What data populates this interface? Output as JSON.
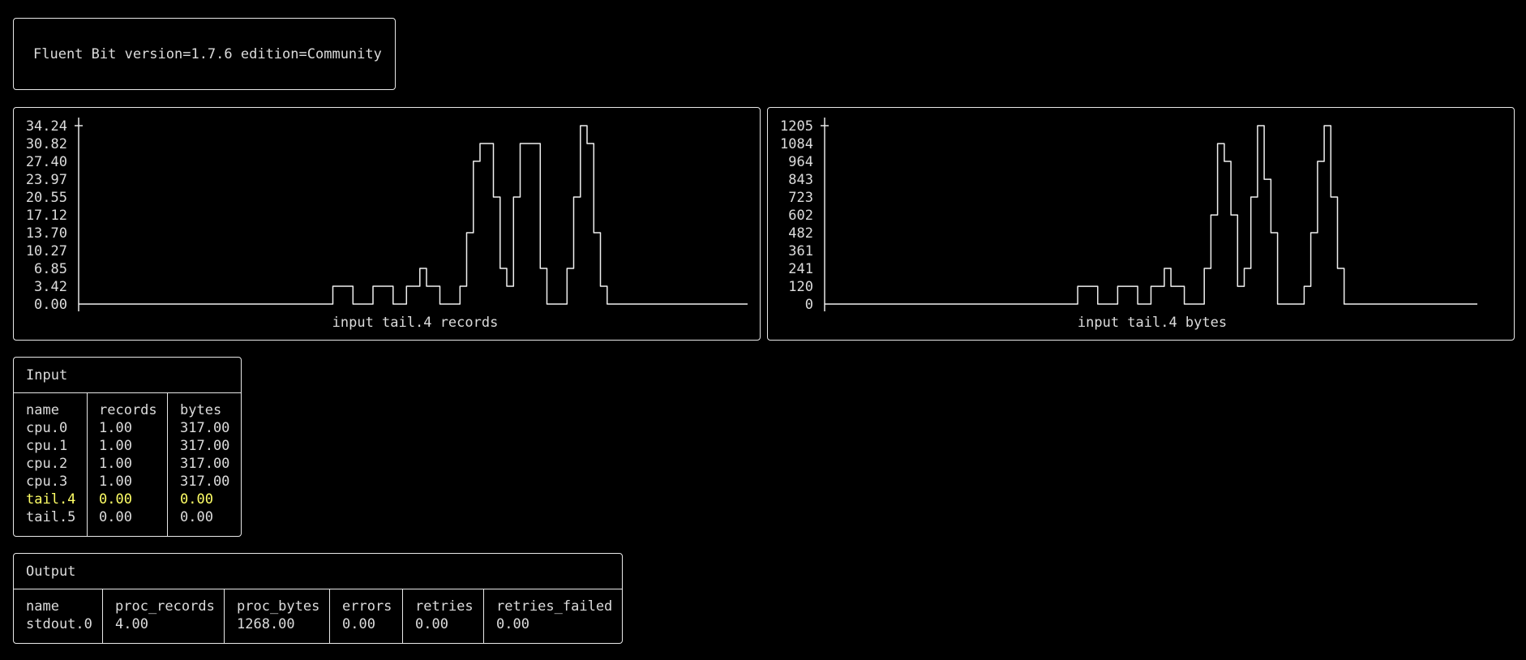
{
  "header": {
    "version_text": "Fluent Bit version=1.7.6 edition=Community"
  },
  "chart_data": [
    {
      "type": "line",
      "title": "input tail.4 records",
      "y_ticks": [
        "34.24",
        "30.82",
        "27.40",
        "23.97",
        "20.55",
        "17.12",
        "13.70",
        "10.27",
        "6.85",
        "3.42",
        "0.00"
      ],
      "ylim": [
        0,
        34.24
      ],
      "x": [
        0,
        1,
        2,
        3,
        4,
        5,
        6,
        7,
        8,
        9,
        10,
        11,
        12,
        13,
        14,
        15,
        16,
        17,
        18,
        19,
        20,
        21,
        22,
        23,
        24,
        25,
        26,
        27,
        28,
        29,
        30,
        31,
        32,
        33,
        34,
        35,
        36,
        37,
        38,
        39,
        40,
        41,
        42,
        43,
        44,
        45,
        46,
        47,
        48,
        49,
        50,
        51,
        52,
        53,
        54,
        55,
        56,
        57,
        58,
        59,
        60,
        61,
        62,
        63,
        64,
        65,
        66,
        67,
        68,
        69,
        70,
        71,
        72,
        73,
        74,
        75,
        76,
        77,
        78,
        79,
        80,
        81,
        82,
        83,
        84,
        85,
        86,
        87,
        88,
        89,
        90,
        91,
        92,
        93,
        94,
        95,
        96,
        97,
        98,
        99
      ],
      "values": [
        0,
        0,
        0,
        0,
        0,
        0,
        0,
        0,
        0,
        0,
        0,
        0,
        0,
        0,
        0,
        0,
        0,
        0,
        0,
        0,
        0,
        0,
        0,
        0,
        0,
        0,
        0,
        0,
        0,
        0,
        0,
        0,
        0,
        0,
        0,
        0,
        0,
        0,
        3.42,
        3.42,
        3.42,
        0,
        0,
        0,
        3.42,
        3.42,
        3.42,
        0,
        0,
        3.42,
        3.42,
        6.85,
        3.42,
        3.42,
        0,
        0,
        0,
        3.42,
        13.7,
        27.4,
        30.82,
        30.82,
        20.55,
        6.85,
        3.42,
        20.55,
        30.82,
        30.82,
        30.82,
        6.85,
        0,
        0,
        0,
        6.85,
        20.55,
        34.24,
        30.82,
        13.7,
        3.42,
        0,
        0,
        0,
        0,
        0,
        0,
        0,
        0,
        0,
        0,
        0,
        0,
        0,
        0,
        0,
        0,
        0,
        0,
        0,
        0,
        0
      ]
    },
    {
      "type": "line",
      "title": "input tail.4 bytes",
      "y_ticks": [
        "1205",
        "1084",
        "964",
        "843",
        "723",
        "602",
        "482",
        "361",
        "241",
        "120",
        "0"
      ],
      "ylim": [
        0,
        1205
      ],
      "x": [
        0,
        1,
        2,
        3,
        4,
        5,
        6,
        7,
        8,
        9,
        10,
        11,
        12,
        13,
        14,
        15,
        16,
        17,
        18,
        19,
        20,
        21,
        22,
        23,
        24,
        25,
        26,
        27,
        28,
        29,
        30,
        31,
        32,
        33,
        34,
        35,
        36,
        37,
        38,
        39,
        40,
        41,
        42,
        43,
        44,
        45,
        46,
        47,
        48,
        49,
        50,
        51,
        52,
        53,
        54,
        55,
        56,
        57,
        58,
        59,
        60,
        61,
        62,
        63,
        64,
        65,
        66,
        67,
        68,
        69,
        70,
        71,
        72,
        73,
        74,
        75,
        76,
        77,
        78,
        79,
        80,
        81,
        82,
        83,
        84,
        85,
        86,
        87,
        88,
        89,
        90,
        91,
        92,
        93,
        94,
        95,
        96,
        97
      ],
      "values": [
        0,
        0,
        0,
        0,
        0,
        0,
        0,
        0,
        0,
        0,
        0,
        0,
        0,
        0,
        0,
        0,
        0,
        0,
        0,
        0,
        0,
        0,
        0,
        0,
        0,
        0,
        0,
        0,
        0,
        0,
        0,
        0,
        0,
        0,
        0,
        0,
        0,
        0,
        120,
        120,
        120,
        0,
        0,
        0,
        120,
        120,
        120,
        0,
        0,
        120,
        120,
        241,
        120,
        120,
        0,
        0,
        0,
        241,
        602,
        1084,
        964,
        602,
        120,
        241,
        723,
        1205,
        843,
        482,
        0,
        0,
        0,
        0,
        120,
        482,
        964,
        1205,
        723,
        241,
        0,
        0,
        0,
        0,
        0,
        0,
        0,
        0,
        0,
        0,
        0,
        0,
        0,
        0,
        0,
        0,
        0,
        0,
        0,
        0
      ]
    }
  ],
  "input": {
    "title": "Input",
    "columns": [
      "name",
      "records",
      "bytes"
    ],
    "rows": [
      [
        "cpu.0",
        "1.00",
        "317.00"
      ],
      [
        "cpu.1",
        "1.00",
        "317.00"
      ],
      [
        "cpu.2",
        "1.00",
        "317.00"
      ],
      [
        "cpu.3",
        "1.00",
        "317.00"
      ],
      [
        "tail.4",
        "0.00",
        "0.00"
      ],
      [
        "tail.5",
        "0.00",
        "0.00"
      ]
    ],
    "highlight_row": 4,
    "highlight_color": "#ffff66"
  },
  "output": {
    "title": "Output",
    "columns": [
      "name",
      "proc_records",
      "proc_bytes",
      "errors",
      "retries",
      "retries_failed"
    ],
    "rows": [
      [
        "stdout.0",
        "4.00",
        "1268.00",
        "0.00",
        "0.00",
        "0.00"
      ]
    ]
  }
}
